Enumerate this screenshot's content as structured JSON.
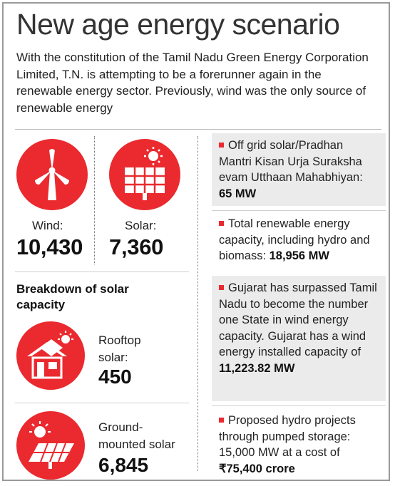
{
  "title": "New age energy scenario",
  "intro": "With the constitution of the Tamil Nadu Green Energy Corporation Limited, T.N. is attempting to be a forerunner again in the renewable energy sector. Previously, wind was the only source of renewable energy",
  "stats": {
    "wind": {
      "label": "Wind:",
      "value": "10,430",
      "icon": "wind-turbine-icon"
    },
    "solar": {
      "label": "Solar:",
      "value": "7,360",
      "icon": "solar-panel-icon"
    }
  },
  "breakdown": {
    "title": "Breakdown of solar capacity",
    "rooftop": {
      "label_line1": "Rooftop",
      "label_line2": "solar:",
      "value": "450",
      "icon": "house-solar-icon"
    },
    "ground": {
      "label_line1": "Ground-",
      "label_line2": "mounted solar",
      "value": "6,845",
      "icon": "ground-solar-icon"
    }
  },
  "notes": [
    {
      "text": "Off grid solar/Pradhan Mantri Kisan Urja Suraksha evam Utthaan Mahabhiyan: ",
      "bold": "65 MW"
    },
    {
      "text": "Total renewable energy capacity, including hydro and biomass: ",
      "bold": "18,956 MW"
    },
    {
      "text": "Gujarat has surpassed Tamil Nadu to become the number one State in wind energy capacity. Gujarat has a wind energy installed capacity of ",
      "bold": "11,223.82 MW"
    },
    {
      "text": "Proposed hydro projects through pumped storage: 15,000 MW at a cost of ",
      "bold": "₹75,400 crore"
    }
  ],
  "colors": {
    "accent": "#ea2a2f",
    "shade": "#ebebeb"
  }
}
